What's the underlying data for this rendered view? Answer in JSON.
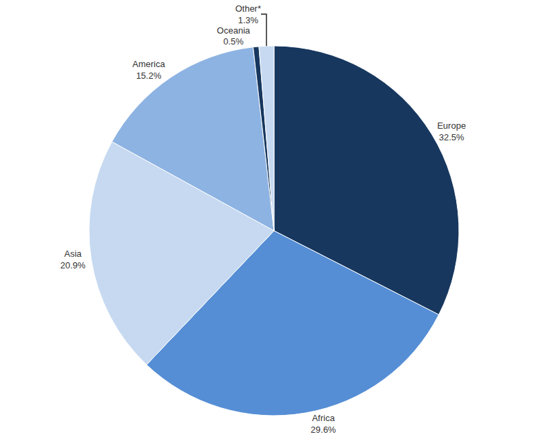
{
  "chart_data": {
    "type": "pie",
    "categories": [
      "Europe",
      "Africa",
      "Asia",
      "America",
      "Oceania",
      "Other*"
    ],
    "values": [
      32.5,
      29.6,
      20.9,
      15.2,
      0.5,
      1.3
    ],
    "value_labels": [
      "32.5%",
      "29.6%",
      "20.9%",
      "15.2%",
      "0.5%",
      "1.3%"
    ],
    "colors": [
      "#17375e",
      "#558ed5",
      "#c6d9f1",
      "#8db3e2",
      "#17375e",
      "#c6d9f1"
    ],
    "data_labels": true
  }
}
